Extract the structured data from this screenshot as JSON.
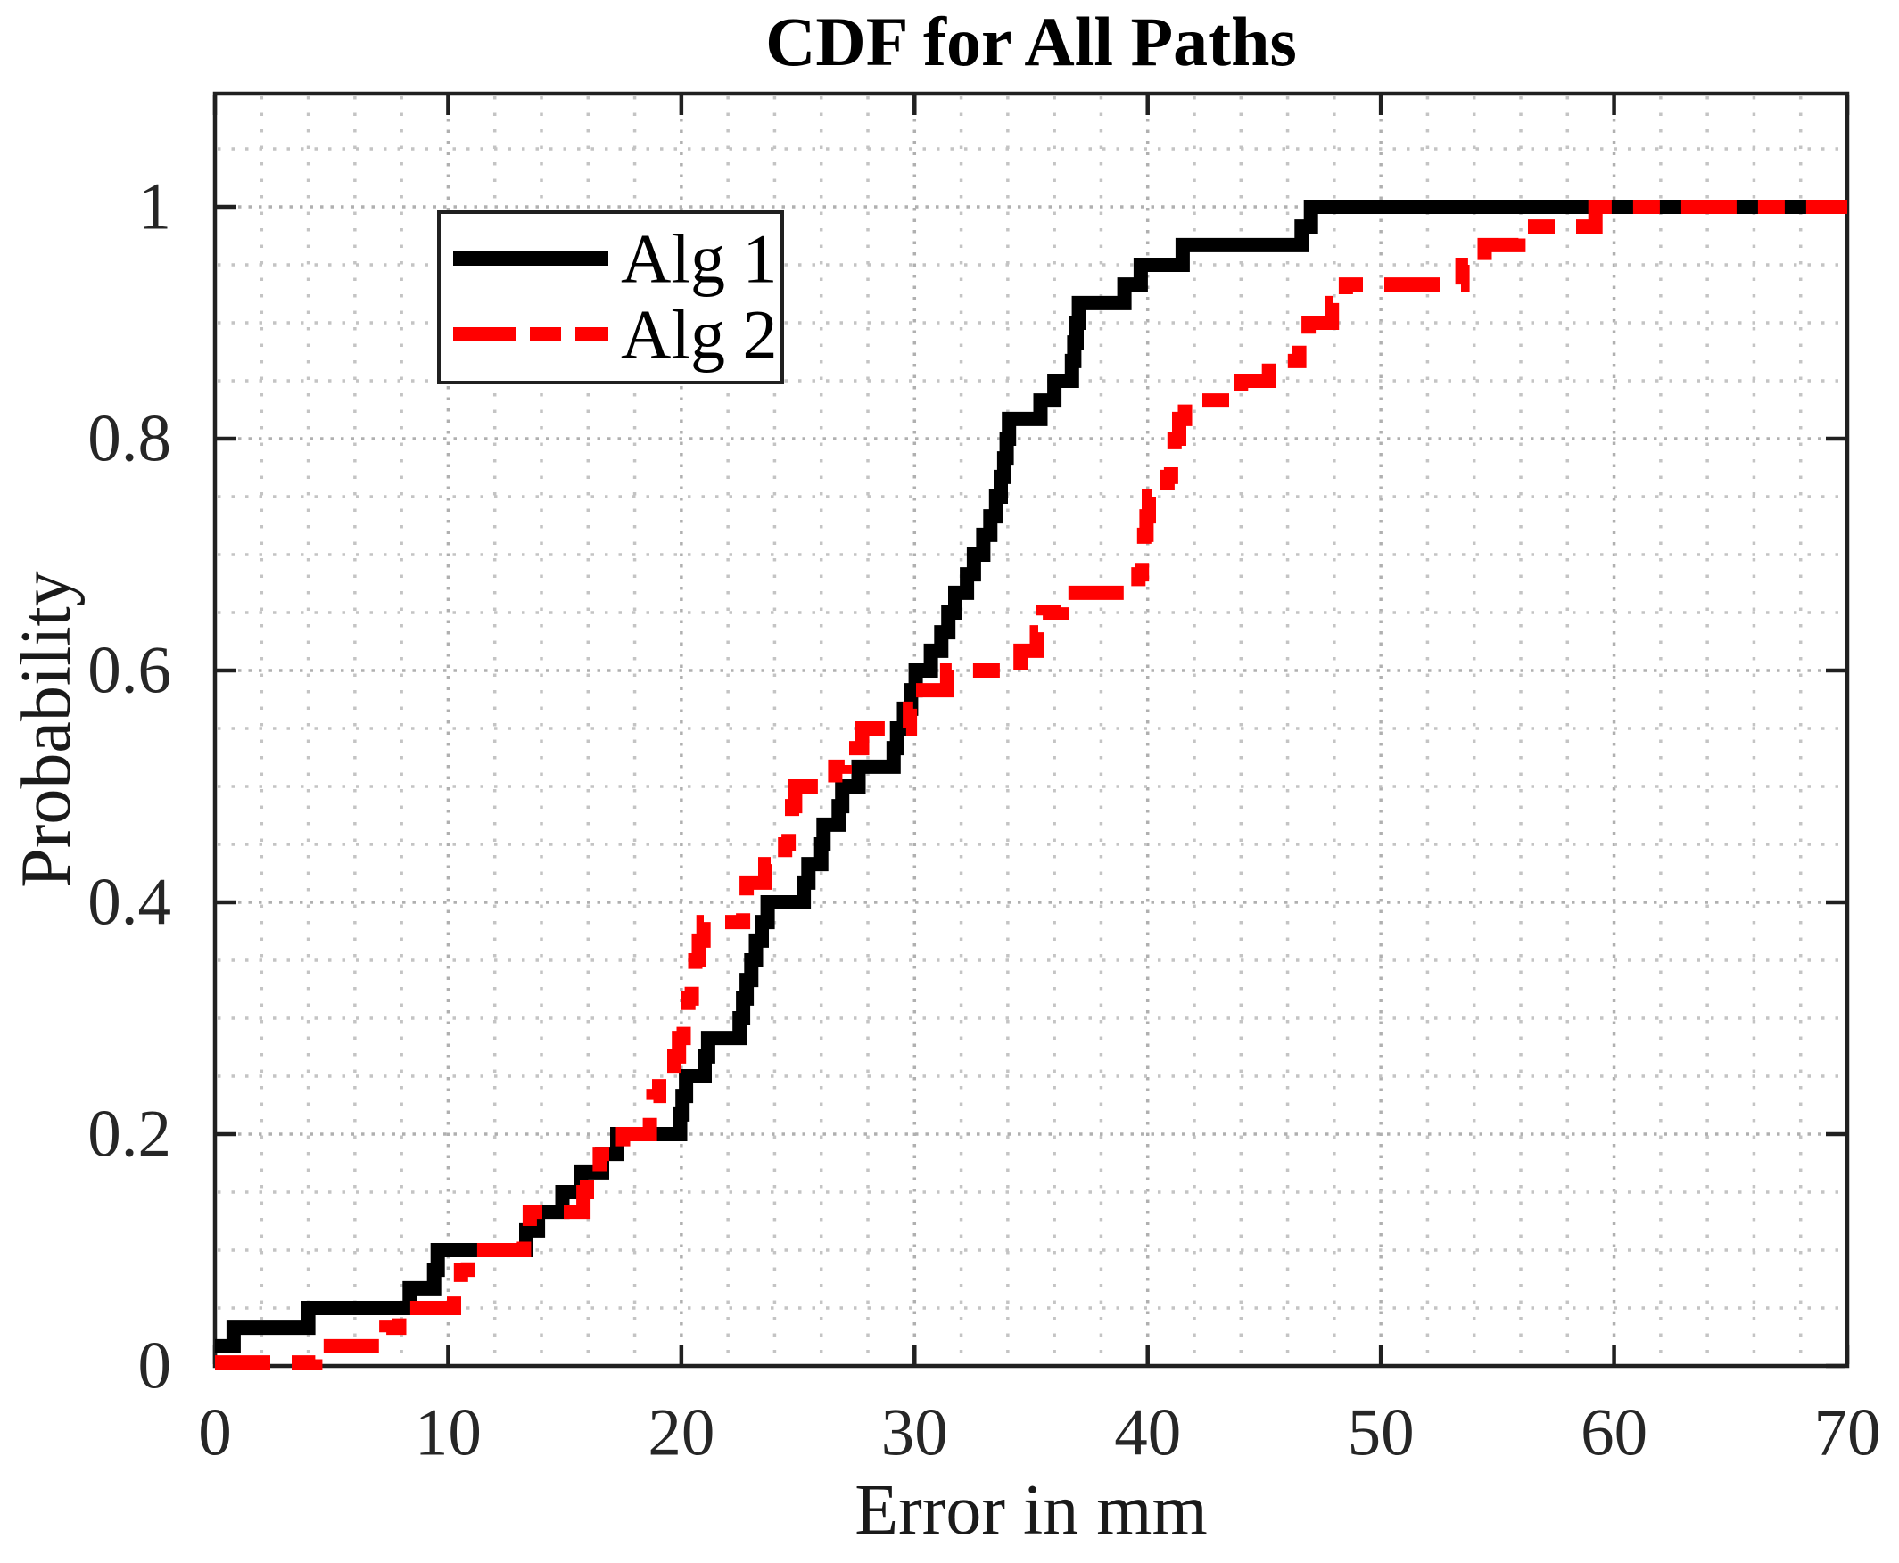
{
  "title": "CDF for All Paths",
  "axes": {
    "xlabel": "Error in mm",
    "ylabel": "Probability",
    "x_tick_labels": [
      "0",
      "10",
      "20",
      "30",
      "40",
      "50",
      "60",
      "70"
    ],
    "y_tick_labels": [
      "0",
      "0.2",
      "0.4",
      "0.6",
      "0.8",
      "1"
    ]
  },
  "legend": {
    "items": [
      {
        "label": "Alg 1",
        "color": "#000000",
        "style": "solid"
      },
      {
        "label": "Alg 2",
        "color": "#ff0000",
        "style": "dash-dot"
      }
    ]
  },
  "colors": {
    "series1": "#000000",
    "series2": "#ff0000",
    "axis": "#202020",
    "grid_major": "#b0b0b0",
    "grid_minor": "#c4c4c4",
    "background": "#ffffff"
  },
  "chart_data": {
    "type": "line",
    "subtype": "empirical-cdf-steps",
    "title": "CDF for All Paths",
    "xlabel": "Error in mm",
    "ylabel": "Probability",
    "xlim": [
      0,
      70
    ],
    "ylim": [
      0,
      1.1
    ],
    "x_major_ticks": [
      0,
      10,
      20,
      30,
      40,
      50,
      60,
      70
    ],
    "y_major_ticks": [
      0,
      0.2,
      0.4,
      0.6,
      0.8,
      1
    ],
    "x_minor_step": 2,
    "y_minor_step": 0.05,
    "grid": {
      "major": true,
      "minor": true,
      "style": "dotted"
    },
    "legend_position": "upper-left-inside",
    "series": [
      {
        "name": "Alg 1",
        "color": "#000000",
        "line_style": "solid",
        "line_width": 16,
        "steps": [
          [
            0,
            0.017
          ],
          [
            0.8,
            0.033
          ],
          [
            4.0,
            0.05
          ],
          [
            8.35,
            0.067
          ],
          [
            9.4,
            0.083
          ],
          [
            9.55,
            0.1
          ],
          [
            13.35,
            0.117
          ],
          [
            13.85,
            0.133
          ],
          [
            14.9,
            0.15
          ],
          [
            15.7,
            0.167
          ],
          [
            16.6,
            0.183
          ],
          [
            17.25,
            0.2
          ],
          [
            19.95,
            0.217
          ],
          [
            20.05,
            0.233
          ],
          [
            20.2,
            0.25
          ],
          [
            21.0,
            0.267
          ],
          [
            21.15,
            0.283
          ],
          [
            22.5,
            0.3
          ],
          [
            22.65,
            0.317
          ],
          [
            22.8,
            0.333
          ],
          [
            23.0,
            0.35
          ],
          [
            23.2,
            0.367
          ],
          [
            23.45,
            0.383
          ],
          [
            23.7,
            0.4
          ],
          [
            25.25,
            0.417
          ],
          [
            25.45,
            0.433
          ],
          [
            26.0,
            0.45
          ],
          [
            26.1,
            0.467
          ],
          [
            26.75,
            0.483
          ],
          [
            26.9,
            0.5
          ],
          [
            27.6,
            0.517
          ],
          [
            29.1,
            0.533
          ],
          [
            29.25,
            0.55
          ],
          [
            29.55,
            0.567
          ],
          [
            29.85,
            0.583
          ],
          [
            30.05,
            0.6
          ],
          [
            30.7,
            0.617
          ],
          [
            31.15,
            0.633
          ],
          [
            31.45,
            0.65
          ],
          [
            31.75,
            0.667
          ],
          [
            32.25,
            0.683
          ],
          [
            32.55,
            0.7
          ],
          [
            32.95,
            0.717
          ],
          [
            33.25,
            0.733
          ],
          [
            33.5,
            0.75
          ],
          [
            33.7,
            0.767
          ],
          [
            33.85,
            0.783
          ],
          [
            33.95,
            0.8
          ],
          [
            34.05,
            0.817
          ],
          [
            35.4,
            0.833
          ],
          [
            36.0,
            0.85
          ],
          [
            36.75,
            0.867
          ],
          [
            36.85,
            0.883
          ],
          [
            36.95,
            0.9
          ],
          [
            37.05,
            0.917
          ],
          [
            39.0,
            0.933
          ],
          [
            39.7,
            0.95
          ],
          [
            41.5,
            0.967
          ],
          [
            46.6,
            0.983
          ],
          [
            47.0,
            1.0
          ]
        ]
      },
      {
        "name": "Alg 2",
        "color": "#ff0000",
        "line_style": "dash-dot",
        "line_width": 16,
        "steps": [
          [
            0,
            0.003
          ],
          [
            4.3,
            0.017
          ],
          [
            7.35,
            0.033
          ],
          [
            7.9,
            0.05
          ],
          [
            10.25,
            0.067
          ],
          [
            10.55,
            0.083
          ],
          [
            10.85,
            0.1
          ],
          [
            13.25,
            0.117
          ],
          [
            13.5,
            0.133
          ],
          [
            15.8,
            0.15
          ],
          [
            15.95,
            0.167
          ],
          [
            16.5,
            0.183
          ],
          [
            17.5,
            0.2
          ],
          [
            18.65,
            0.217
          ],
          [
            18.8,
            0.233
          ],
          [
            19.05,
            0.25
          ],
          [
            19.7,
            0.267
          ],
          [
            19.9,
            0.283
          ],
          [
            20.1,
            0.3
          ],
          [
            20.3,
            0.317
          ],
          [
            20.45,
            0.333
          ],
          [
            20.6,
            0.35
          ],
          [
            20.75,
            0.367
          ],
          [
            20.95,
            0.383
          ],
          [
            22.65,
            0.4
          ],
          [
            22.8,
            0.417
          ],
          [
            23.6,
            0.433
          ],
          [
            24.45,
            0.45
          ],
          [
            24.6,
            0.467
          ],
          [
            24.75,
            0.483
          ],
          [
            24.88,
            0.5
          ],
          [
            26.6,
            0.517
          ],
          [
            27.0,
            0.533
          ],
          [
            27.75,
            0.55
          ],
          [
            29.8,
            0.567
          ],
          [
            29.95,
            0.583
          ],
          [
            31.4,
            0.6
          ],
          [
            34.55,
            0.617
          ],
          [
            35.25,
            0.633
          ],
          [
            35.5,
            0.65
          ],
          [
            36.3,
            0.667
          ],
          [
            39.6,
            0.683
          ],
          [
            39.75,
            0.7
          ],
          [
            39.85,
            0.717
          ],
          [
            39.95,
            0.733
          ],
          [
            40.05,
            0.75
          ],
          [
            40.85,
            0.767
          ],
          [
            41.0,
            0.783
          ],
          [
            41.15,
            0.8
          ],
          [
            41.35,
            0.817
          ],
          [
            41.6,
            0.833
          ],
          [
            44.0,
            0.85
          ],
          [
            45.2,
            0.867
          ],
          [
            46.5,
            0.883
          ],
          [
            46.9,
            0.9
          ],
          [
            47.9,
            0.917
          ],
          [
            48.5,
            0.933
          ],
          [
            53.5,
            0.95
          ],
          [
            54.45,
            0.967
          ],
          [
            55.9,
            0.983
          ],
          [
            59.2,
            1.0
          ]
        ]
      }
    ]
  }
}
